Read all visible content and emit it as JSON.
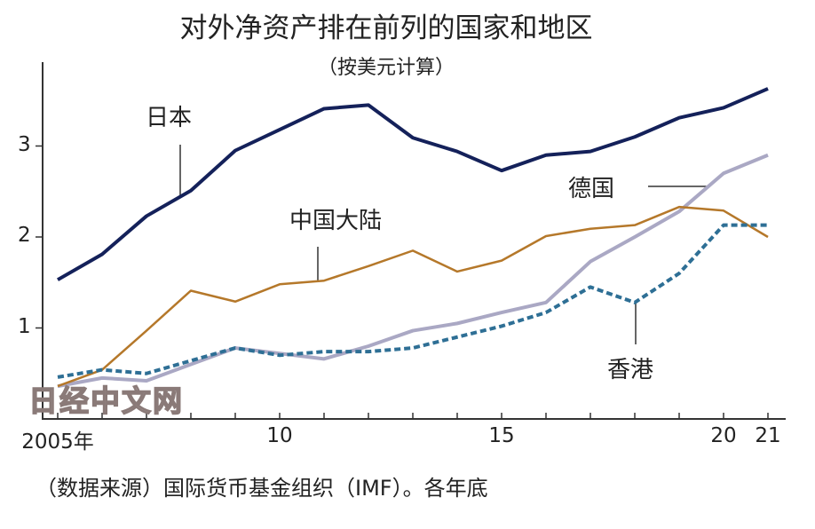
{
  "chart_data": {
    "type": "line",
    "title": "对外净资产排在前列的国家和地区",
    "subtitle": "（按美元计算）",
    "source": "（数据来源）国际货币基金组织（IMF）。各年底",
    "watermark": "日经中文网",
    "x": [
      2005,
      2006,
      2007,
      2008,
      2009,
      2010,
      2011,
      2012,
      2013,
      2014,
      2015,
      2016,
      2017,
      2018,
      2019,
      2020,
      2021
    ],
    "x_tick_labels": [
      {
        "x": 2005,
        "label": "2005年"
      },
      {
        "x": 2010,
        "label": "10"
      },
      {
        "x": 2015,
        "label": "15"
      },
      {
        "x": 2020,
        "label": "20"
      },
      {
        "x": 2021,
        "label": "21"
      }
    ],
    "y_tick_labels": [
      {
        "y": 1,
        "label": "1"
      },
      {
        "y": 2,
        "label": "2"
      },
      {
        "y": 3,
        "label": "3"
      }
    ],
    "ylim": [
      0,
      3.9
    ],
    "xlim": [
      2005,
      2021
    ],
    "grid": false,
    "series": [
      {
        "name": "日本",
        "color": "#14215a",
        "dash": false,
        "width": 4,
        "values": [
          1.53,
          1.81,
          2.23,
          2.51,
          2.95,
          3.18,
          3.41,
          3.45,
          3.09,
          2.94,
          2.73,
          2.9,
          2.94,
          3.1,
          3.31,
          3.42,
          3.63
        ]
      },
      {
        "name": "中国大陆",
        "color": "#b5782a",
        "dash": false,
        "width": 2.5,
        "values": [
          0.36,
          0.54,
          0.97,
          1.41,
          1.29,
          1.48,
          1.52,
          1.68,
          1.85,
          1.62,
          1.74,
          2.01,
          2.09,
          2.13,
          2.33,
          2.29,
          2.0
        ]
      },
      {
        "name": "德国",
        "color": "#aaa8c4",
        "dash": false,
        "width": 4,
        "values": [
          0.36,
          0.45,
          0.42,
          0.6,
          0.78,
          0.72,
          0.66,
          0.8,
          0.97,
          1.05,
          1.17,
          1.28,
          1.73,
          2.0,
          2.28,
          2.7,
          2.9
        ]
      },
      {
        "name": "香港",
        "color": "#2e6f95",
        "dash": true,
        "width": 4,
        "values": [
          0.46,
          0.54,
          0.5,
          0.64,
          0.78,
          0.7,
          0.74,
          0.74,
          0.78,
          0.9,
          1.02,
          1.17,
          1.45,
          1.28,
          1.6,
          2.13,
          2.13
        ]
      }
    ]
  }
}
